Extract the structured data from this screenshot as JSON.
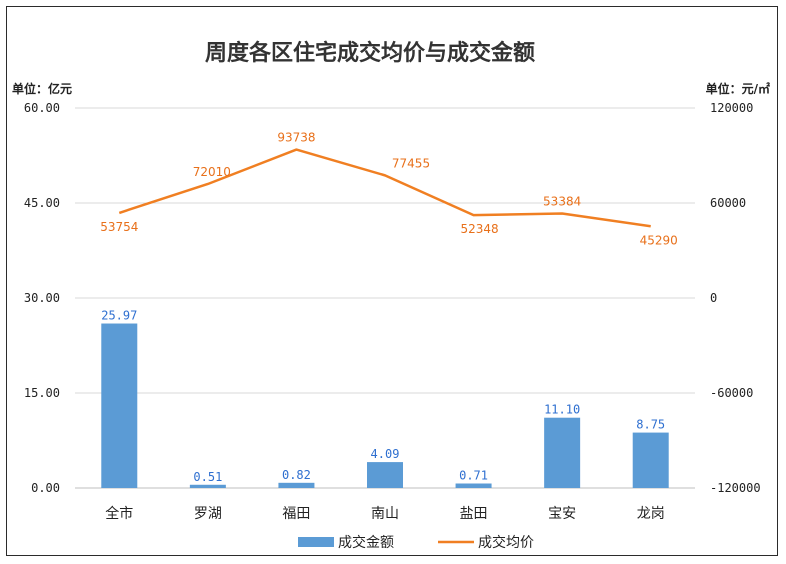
{
  "chart_data": {
    "type": "bar",
    "title": "周度各区住宅成交均价与成交金额",
    "left_unit": "单位：亿元",
    "right_unit": "单位：元/㎡",
    "categories": [
      "全市",
      "罗湖",
      "福田",
      "南山",
      "盐田",
      "宝安",
      "龙岗"
    ],
    "ylim_left": [
      0,
      60
    ],
    "ylim_right": [
      -120000,
      120000
    ],
    "left_ticks": [
      "0.00",
      "15.00",
      "30.00",
      "45.00",
      "60.00"
    ],
    "right_ticks": [
      "-120000",
      "-60000",
      "0",
      "60000",
      "120000"
    ],
    "grid": true,
    "legend_position": "bottom",
    "series": [
      {
        "name": "成交金额",
        "type": "bar",
        "axis": "left",
        "color": "#5b9bd5",
        "values": [
          25.97,
          0.51,
          0.82,
          4.09,
          0.71,
          11.1,
          8.75
        ],
        "labels": [
          "25.97",
          "0.51",
          "0.82",
          "4.09",
          "0.71",
          "11.10",
          "8.75"
        ]
      },
      {
        "name": "成交均价",
        "type": "line",
        "axis": "right",
        "color": "#f07f22",
        "values": [
          53754,
          72010,
          93738,
          77455,
          52348,
          53384,
          45290
        ],
        "labels": [
          "53754",
          "72010",
          "93738",
          "77455",
          "52348",
          "53384",
          "45290"
        ]
      }
    ]
  }
}
